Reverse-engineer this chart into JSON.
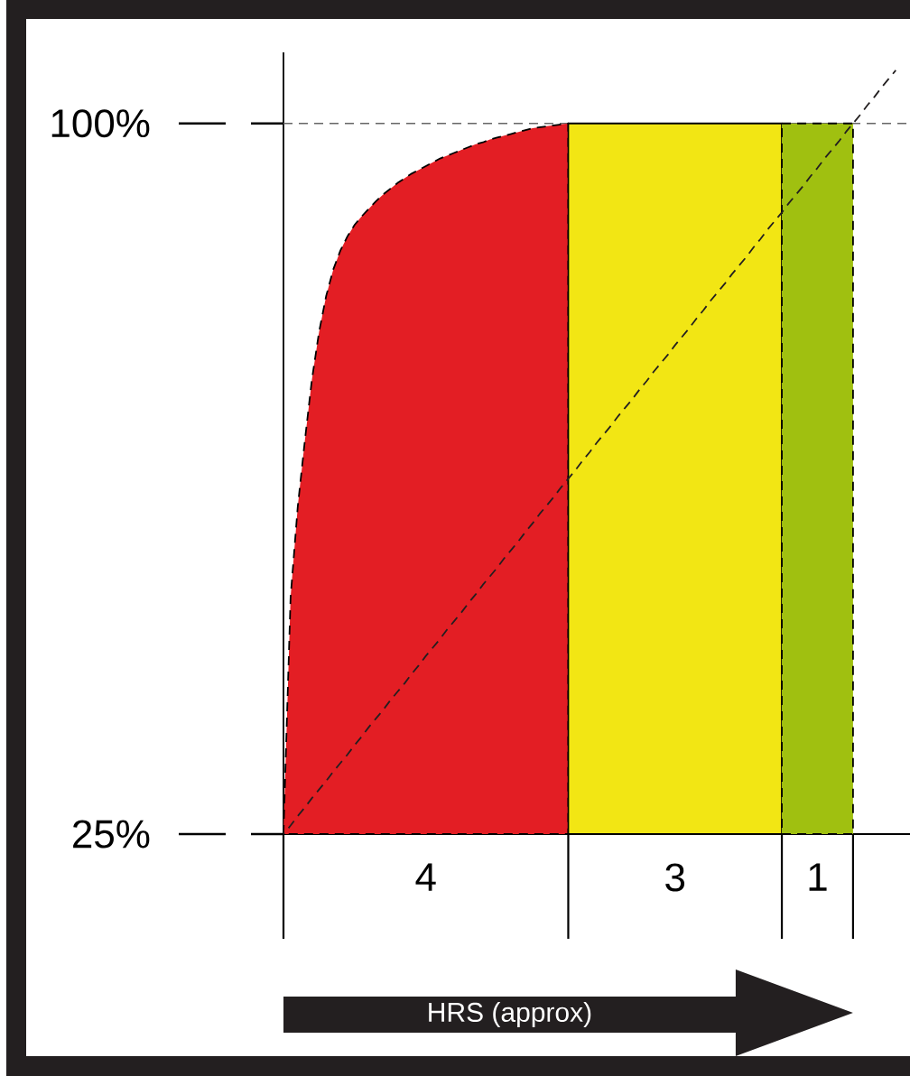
{
  "chart_data": {
    "type": "area",
    "categories": [
      null,
      null,
      null,
      null,
      null,
      null,
      null,
      null,
      null,
      null,
      null,
      null,
      null,
      null,
      null,
      null,
      null,
      null,
      null,
      null,
      null,
      null,
      null,
      null,
      null,
      null,
      null,
      null,
      null,
      null,
      null,
      null,
      null,
      null,
      null,
      null,
      null,
      null,
      null,
      null,
      null,
      null,
      null,
      null,
      null,
      null,
      null,
      null,
      null,
      null,
      null,
      null,
      null,
      null,
      null,
      null,
      null,
      null,
      null,
      null,
      null,
      null,
      null,
      null,
      null,
      null,
      null,
      null,
      null,
      null,
      null,
      null,
      null,
      null,
      null,
      null,
      null,
      null,
      null,
      null,
      null,
      null,
      null,
      null,
      null,
      null,
      null,
      null,
      null
    ],
    "series": [
      {
        "color": "#e31e24",
        "line_style": "dashed",
        "values": [
          25,
          50,
          59.5,
          66.5,
          73,
          78,
          81.8,
          84.6,
          86.6,
          88.1,
          89.3,
          90.2,
          91,
          91.8,
          92.5,
          93.1,
          93.7,
          94.2,
          94.7,
          95.1,
          95.5,
          95.9,
          96.3,
          96.6,
          96.9,
          97.2,
          97.5,
          97.8,
          98,
          98.3,
          98.5,
          98.7,
          98.9,
          99.1,
          99.3,
          99.5,
          99.6,
          99.7,
          99.8,
          99.9,
          100,
          null,
          null,
          null,
          null,
          null,
          null,
          null,
          null,
          null,
          null,
          null,
          null,
          null,
          null,
          null,
          null,
          null,
          null,
          null,
          null,
          null,
          null,
          null,
          null,
          null,
          null,
          null,
          null,
          null,
          null,
          null,
          null,
          null,
          null,
          null,
          null,
          null,
          null,
          null,
          null,
          null,
          null,
          null,
          null,
          null,
          null,
          null,
          null
        ]
      },
      {
        "color": "#f2e614",
        "line_style": "solid",
        "values": [
          null,
          null,
          null,
          null,
          null,
          null,
          null,
          null,
          null,
          null,
          null,
          null,
          null,
          null,
          null,
          null,
          null,
          null,
          null,
          null,
          null,
          null,
          null,
          null,
          null,
          null,
          null,
          null,
          null,
          null,
          null,
          null,
          null,
          null,
          null,
          null,
          null,
          null,
          null,
          null,
          100,
          100,
          100,
          100,
          100,
          100,
          100,
          100,
          100,
          100,
          100,
          100,
          100,
          100,
          100,
          100,
          100,
          100,
          100,
          100,
          100,
          100,
          100,
          100,
          100,
          100,
          100,
          100,
          100,
          100,
          100,
          null,
          null,
          null,
          null,
          null,
          null,
          null,
          null,
          null,
          null,
          null,
          null,
          null,
          null,
          null,
          null,
          null,
          null
        ]
      },
      {
        "color": "#a0c010",
        "line_style": "dashed",
        "values": [
          null,
          null,
          null,
          null,
          null,
          null,
          null,
          null,
          null,
          null,
          null,
          null,
          null,
          null,
          null,
          null,
          null,
          null,
          null,
          null,
          null,
          null,
          null,
          null,
          null,
          null,
          null,
          null,
          null,
          null,
          null,
          null,
          null,
          null,
          null,
          null,
          null,
          null,
          null,
          null,
          null,
          null,
          null,
          null,
          null,
          null,
          null,
          null,
          null,
          null,
          null,
          null,
          null,
          null,
          null,
          null,
          null,
          null,
          null,
          null,
          null,
          null,
          null,
          null,
          null,
          null,
          null,
          null,
          null,
          null,
          100,
          100,
          100,
          100,
          100,
          100,
          100,
          100,
          100,
          100,
          100,
          null,
          null,
          null,
          null,
          null,
          null,
          null,
          null
        ]
      },
      {
        "type": "line",
        "color": "#231f20",
        "line_style": "dashed",
        "values": [
          25,
          25.9,
          26.9,
          27.8,
          28.8,
          29.7,
          30.6,
          31.6,
          32.5,
          33.4,
          34.4,
          35.3,
          36.3,
          37.2,
          38.1,
          39.1,
          40,
          40.9,
          41.9,
          42.8,
          43.8,
          44.7,
          45.6,
          46.6,
          47.5,
          48.4,
          49.4,
          50.3,
          51.3,
          52.2,
          53.1,
          54.1,
          55,
          55.9,
          56.9,
          57.8,
          58.8,
          59.7,
          60.6,
          61.6,
          62.5,
          63.4,
          64.4,
          65.3,
          66.3,
          67.2,
          68.1,
          69.1,
          70,
          70.9,
          71.9,
          72.8,
          73.8,
          74.7,
          75.6,
          76.6,
          77.5,
          78.4,
          79.4,
          80.3,
          81.3,
          82.2,
          83.1,
          84.1,
          85,
          85.9,
          86.9,
          87.8,
          88.8,
          89.7,
          90.6,
          91.6,
          92.5,
          93.4,
          94.4,
          95.3,
          96.3,
          97.2,
          98.1,
          99.1,
          100,
          100.9,
          101.9,
          102.8,
          103.8,
          104.7,
          105.6,
          null,
          null
        ]
      }
    ],
    "ylim": [
      25,
      107.5
    ],
    "yticks": [
      {
        "value": 25,
        "label": "25%"
      },
      {
        "value": 100,
        "label": "100%"
      }
    ],
    "tick_labels": "y",
    "ref_lines": [
      {
        "axis": "y",
        "value": 100,
        "color": "#666666",
        "line_style": "dashed"
      }
    ],
    "annotations": [
      "4",
      "3",
      "1",
      "HRS (approx)"
    ]
  }
}
